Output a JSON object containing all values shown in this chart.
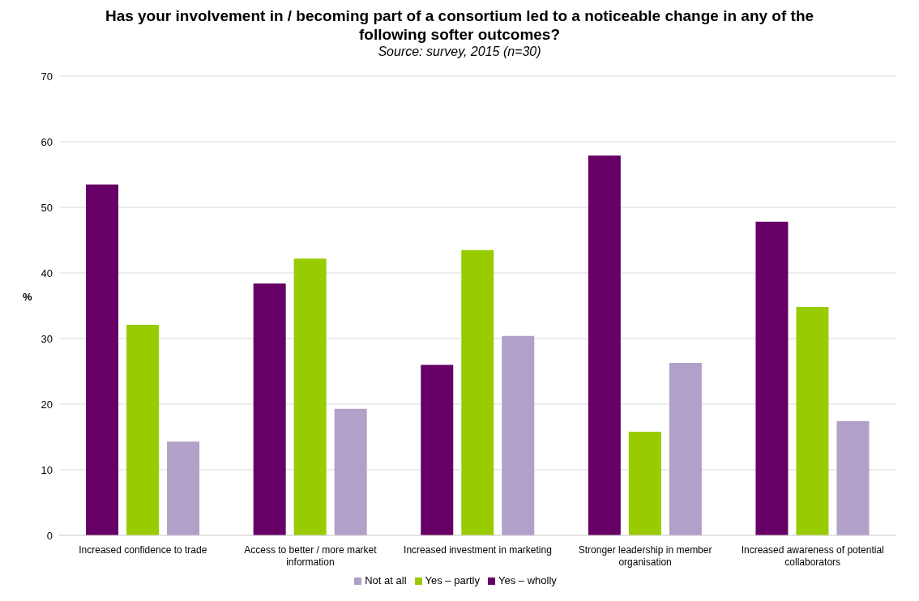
{
  "chart_data": {
    "type": "bar",
    "title": "Has your involvement in / becoming part of a consortium led to a noticeable change in any of the following softer outcomes?",
    "subtitle": "Source: survey, 2015 (n=30)",
    "ylabel": "%",
    "categories": [
      "Increased confidence to trade",
      "Access to better / more market information",
      "Increased investment in marketing",
      "Stronger leadership in member organisation",
      "Increased awareness of potential collaborators"
    ],
    "series": [
      {
        "name": "Yes – wholly",
        "color": "#660066",
        "values": [
          53.5,
          38.4,
          26.0,
          57.9,
          47.8
        ]
      },
      {
        "name": "Yes – partly",
        "color": "#99cc00",
        "values": [
          32.1,
          42.2,
          43.5,
          15.8,
          34.8
        ]
      },
      {
        "name": "Not at all",
        "color": "#b1a0c7",
        "values": [
          14.3,
          19.3,
          30.4,
          26.3,
          17.4
        ]
      }
    ],
    "ylim": [
      0,
      70
    ],
    "yticks": [
      0,
      10,
      20,
      30,
      40,
      50,
      60,
      70
    ],
    "grid": "y",
    "legend": "bottom"
  }
}
